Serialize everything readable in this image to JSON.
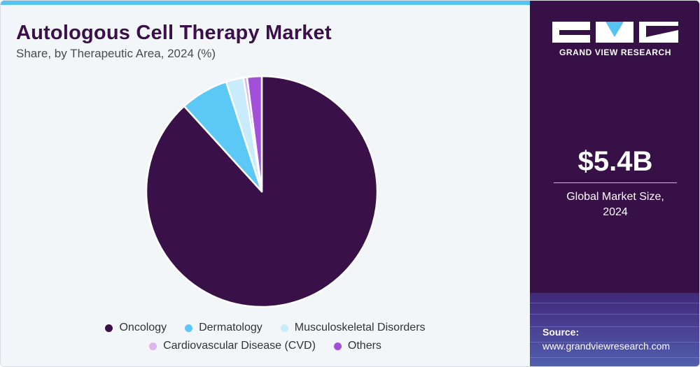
{
  "header": {
    "title": "Autologous Cell Therapy Market",
    "subtitle": "Share, by Therapeutic Area, 2024 (%)"
  },
  "chart_data": {
    "type": "pie",
    "title": "Autologous Cell Therapy Market",
    "subtitle": "Share, by Therapeutic Area, 2024 (%)",
    "categories": [
      "Oncology",
      "Dermatology",
      "Musculoskeletal Disorders",
      "Cardiovascular Disease (CVD)",
      "Others"
    ],
    "values": [
      86.5,
      6.6,
      2.4,
      0.5,
      2.0
    ],
    "colors": [
      "#3a1048",
      "#5bc8f5",
      "#c8ecfb",
      "#dcb6ef",
      "#a24fd9"
    ],
    "legend_position": "bottom"
  },
  "legend": {
    "items": [
      {
        "label": "Oncology",
        "color": "#3a1048"
      },
      {
        "label": "Dermatology",
        "color": "#5bc8f5"
      },
      {
        "label": "Musculoskeletal Disorders",
        "color": "#c8ecfb"
      },
      {
        "label": "Cardiovascular Disease (CVD)",
        "color": "#dcb6ef"
      },
      {
        "label": "Others",
        "color": "#a24fd9"
      }
    ]
  },
  "sidebar": {
    "brand": "GRAND VIEW RESEARCH",
    "market_size_value": "$5.4B",
    "market_size_label_1": "Global Market Size,",
    "market_size_label_2": "2024",
    "source_label": "Source:",
    "source_url": "www.grandviewresearch.com"
  },
  "colors": {
    "panel_bg": "#371047",
    "accent": "#55c4f0",
    "title": "#3a1048"
  }
}
